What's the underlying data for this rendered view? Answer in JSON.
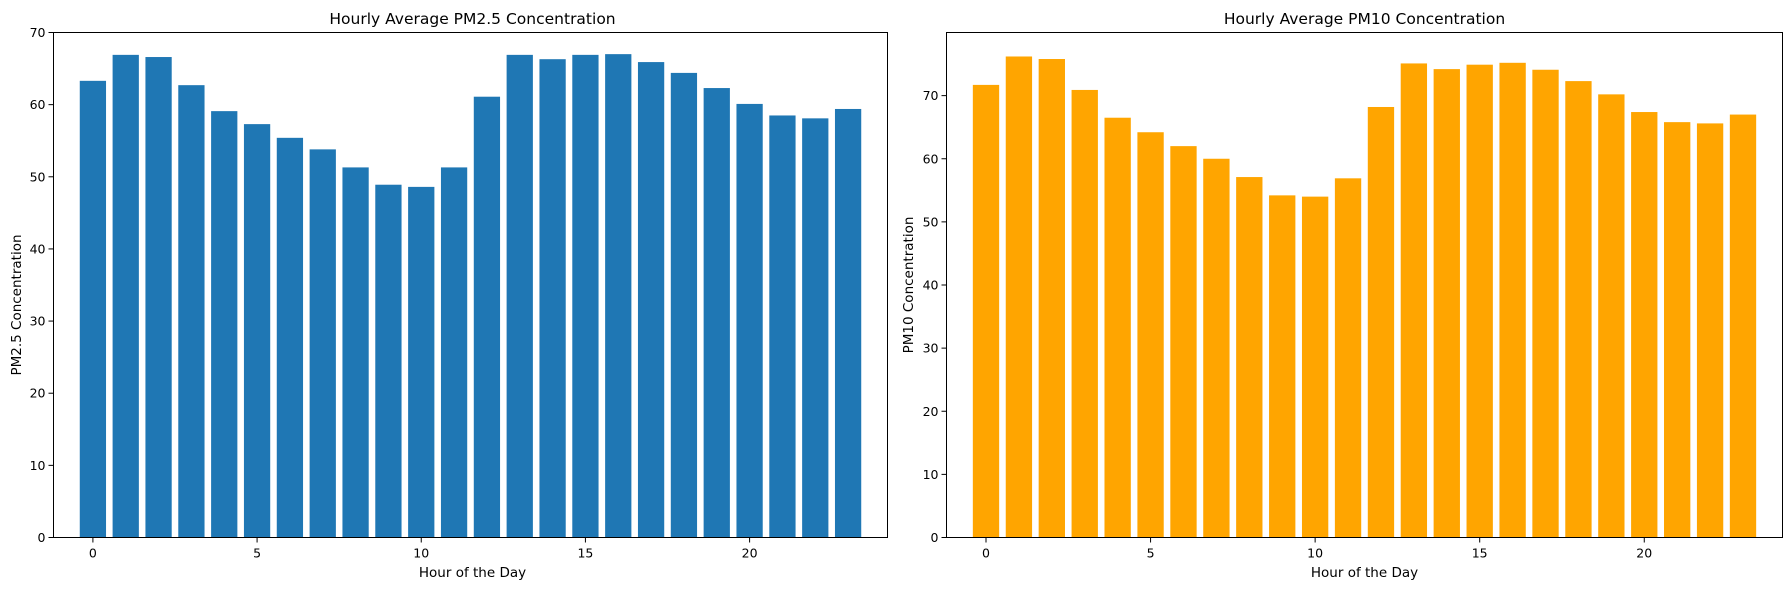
{
  "chart_data": [
    {
      "type": "bar",
      "title": "Hourly Average PM2.5 Concentration",
      "xlabel": "Hour of the Day",
      "ylabel": "PM2.5 Concentration",
      "color": "#1f77b4",
      "categories": [
        0,
        1,
        2,
        3,
        4,
        5,
        6,
        7,
        8,
        9,
        10,
        11,
        12,
        13,
        14,
        15,
        16,
        17,
        18,
        19,
        20,
        21,
        22,
        23
      ],
      "values": [
        63.3,
        66.9,
        66.6,
        62.7,
        59.1,
        57.3,
        55.4,
        53.8,
        51.3,
        48.9,
        48.6,
        51.3,
        61.1,
        66.9,
        66.3,
        66.9,
        67.0,
        65.9,
        64.4,
        62.3,
        60.1,
        58.5,
        58.1,
        59.4
      ],
      "xlim": [
        -1.2,
        24.2
      ],
      "ylim": [
        0,
        70
      ],
      "xticks": [
        0,
        5,
        10,
        15,
        20
      ],
      "yticks": [
        0,
        10,
        20,
        30,
        40,
        50,
        60,
        70
      ],
      "grid": false
    },
    {
      "type": "bar",
      "title": "Hourly Average PM10 Concentration",
      "xlabel": "Hour of the Day",
      "ylabel": "PM10 Concentration",
      "color": "#ffa500",
      "categories": [
        0,
        1,
        2,
        3,
        4,
        5,
        6,
        7,
        8,
        9,
        10,
        11,
        12,
        13,
        14,
        15,
        16,
        17,
        18,
        19,
        20,
        21,
        22,
        23
      ],
      "values": [
        71.7,
        76.2,
        75.8,
        70.9,
        66.5,
        64.2,
        62.0,
        60.0,
        57.1,
        54.2,
        54.0,
        56.9,
        68.2,
        75.1,
        74.2,
        74.9,
        75.2,
        74.1,
        72.3,
        70.2,
        67.4,
        65.8,
        65.6,
        67.0
      ],
      "xlim": [
        -1.2,
        24.2
      ],
      "ylim": [
        0,
        80
      ],
      "xticks": [
        0,
        5,
        10,
        15,
        20
      ],
      "yticks": [
        0,
        10,
        20,
        30,
        40,
        50,
        60,
        70
      ],
      "grid": false
    }
  ]
}
